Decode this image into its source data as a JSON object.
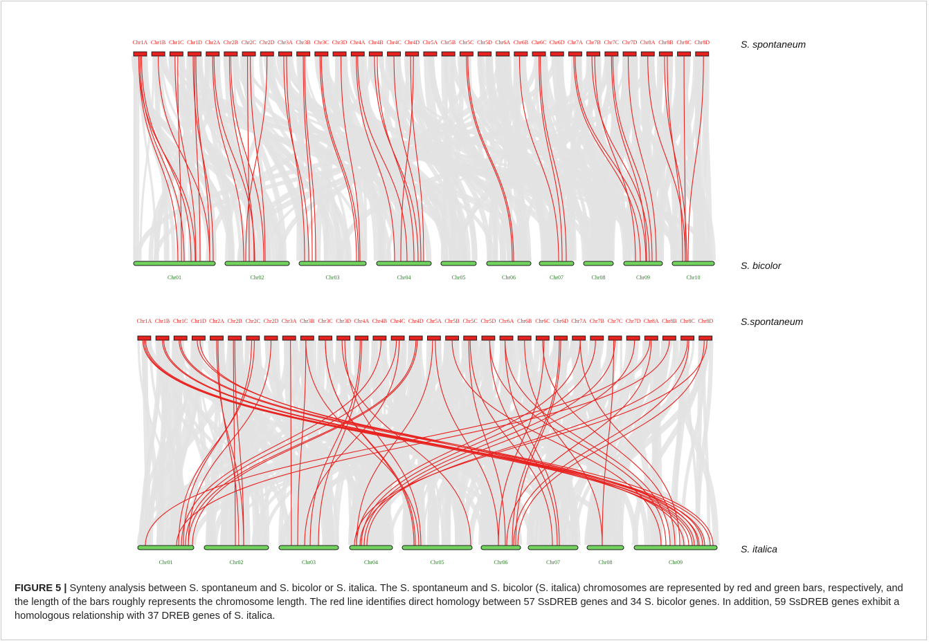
{
  "colors": {
    "top_bar": "#e8221f",
    "bottom_bar": "#73d35f",
    "bar_outline": "#1a1a1a",
    "top_label": "#e8221f",
    "bottom_label": "#2e7d2a",
    "synteny_background": "#e3e3e3",
    "homology_line": "#e8221f"
  },
  "panels": [
    {
      "top_species": "S. spontaneum",
      "bottom_species": "S. bicolor",
      "top_chromosomes": [
        "Chr1A",
        "Chr1B",
        "Chr1C",
        "Chr1D",
        "Chr2A",
        "Chr2B",
        "Chr2C",
        "Chr2D",
        "Chr3A",
        "Chr3B",
        "Chr3C",
        "Chr3D",
        "Chr4A",
        "Chr4B",
        "Chr4C",
        "Chr4D",
        "Chr5A",
        "Chr5B",
        "Chr5C",
        "Chr5D",
        "Chr6A",
        "Chr6B",
        "Chr6C",
        "Chr6D",
        "Chr7A",
        "Chr7B",
        "Chr7C",
        "Chr7D",
        "Chr8A",
        "Chr8B",
        "Chr8C",
        "Chr8D"
      ],
      "bottom_chromosomes": [
        "Chr01",
        "Chr02",
        "Chr03",
        "Chr04",
        "Chr05",
        "Chr06",
        "Chr07",
        "Chr08",
        "Chr09",
        "Chr10"
      ]
    },
    {
      "top_species": "S.spontaneum",
      "bottom_species": "S. italica",
      "top_chromosomes": [
        "Chr1A",
        "Chr1B",
        "Chr1C",
        "Chr1D",
        "Chr2A",
        "Chr2B",
        "Chr2C",
        "Chr2D",
        "Chr3A",
        "Chr3B",
        "Chr3C",
        "Chr3D",
        "Chr4A",
        "Chr4B",
        "Chr4C",
        "Chr4D",
        "Chr5A",
        "Chr5B",
        "Chr5C",
        "Chr5D",
        "Chr6A",
        "Chr6B",
        "Chr6C",
        "Chr6D",
        "Chr7A",
        "Chr7B",
        "Chr7C",
        "Chr7D",
        "Chr8A",
        "Chr8B",
        "Chr8C",
        "Chr8D"
      ],
      "bottom_chromosomes": [
        "Chr01",
        "Chr02",
        "Chr03",
        "Chr04",
        "Chr05",
        "Chr06",
        "Chr07",
        "Chr08",
        "Chr09"
      ]
    }
  ],
  "caption": {
    "label": "FIGURE 5 |",
    "text": "Synteny analysis between S. spontaneum and S. bicolor or S. italica. The S. spontaneum and S. bicolor (S. italica) chromosomes are represented by red and green bars, respectively, and the length of the bars roughly represents the chromosome length. The red line identifies direct homology between 57 SsDREB genes and 34 S. bicolor genes. In addition, 59 SsDREB genes exhibit a homologous relationship with 37 DREB genes of S. italica."
  }
}
